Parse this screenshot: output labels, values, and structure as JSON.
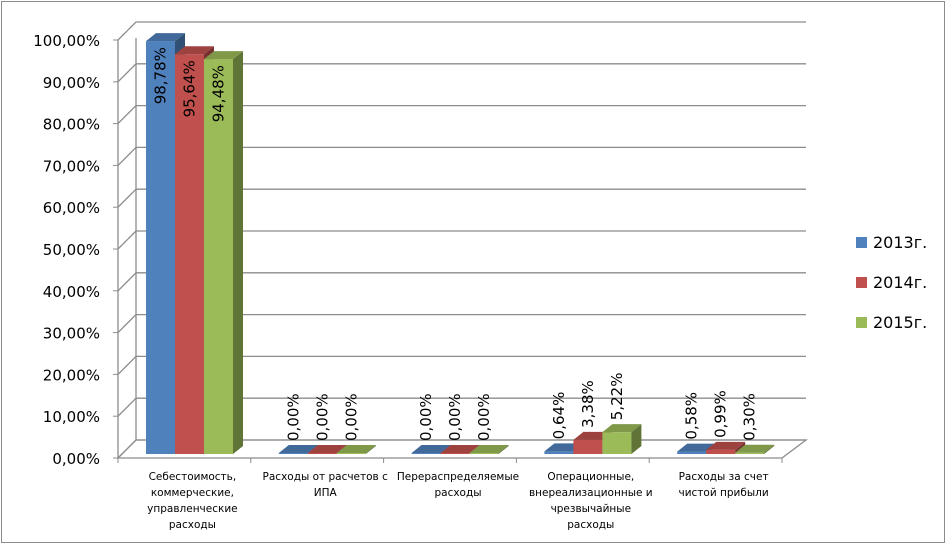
{
  "chart_data": {
    "type": "bar",
    "categories": [
      "Себестоимость, коммерческие, управленческие расходы",
      "Расходы от расчетов с ИПА",
      "Перераспределяемые расходы",
      "Операционные, внереализационные и чрезвычайные расходы",
      "Расходы за счет чистой прибыли"
    ],
    "category_lines": [
      [
        "Себестоимость,",
        "коммерческие,",
        "управленческие",
        "расходы"
      ],
      [
        "Расходы от расчетов с",
        "ИПА"
      ],
      [
        "Перераспределяемые",
        "расходы"
      ],
      [
        "Операционные,",
        "внереализационные и",
        "чрезвычайные",
        "расходы"
      ],
      [
        "Расходы за счет",
        "чистой прибыли"
      ]
    ],
    "series": [
      {
        "name": "2013г.",
        "color": "#4F81BD",
        "values": [
          98.78,
          0.0,
          0.0,
          0.64,
          0.58
        ],
        "labels": [
          "98,78%",
          "0,00%",
          "0,00%",
          "0,64%",
          "0,58%"
        ]
      },
      {
        "name": "2014г.",
        "color": "#C0504D",
        "values": [
          95.64,
          0.0,
          0.0,
          3.38,
          0.99
        ],
        "labels": [
          "95,64%",
          "0,00%",
          "0,00%",
          "3,38%",
          "0,99%"
        ]
      },
      {
        "name": "2015г.",
        "color": "#9BBB59",
        "values": [
          94.48,
          0.0,
          0.0,
          5.22,
          0.3
        ],
        "labels": [
          "94,48%",
          "0,00%",
          "0,00%",
          "5,22%",
          "0,30%"
        ]
      }
    ],
    "y_ticks": [
      "0,00%",
      "10,00%",
      "20,00%",
      "30,00%",
      "40,00%",
      "50,00%",
      "60,00%",
      "70,00%",
      "80,00%",
      "90,00%",
      "100,00%"
    ],
    "ylim": [
      0,
      100
    ],
    "grid": true,
    "legend_position": "right",
    "three_d": true
  }
}
